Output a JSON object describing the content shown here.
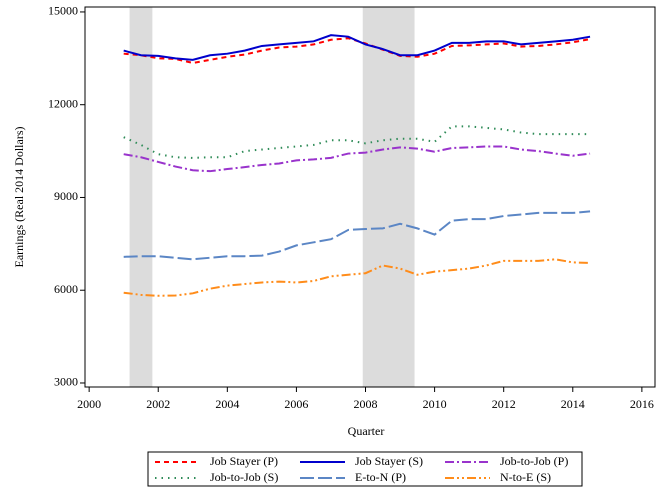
{
  "chart_data": {
    "type": "line",
    "xlabel": "Quarter",
    "ylabel": "Earnings (Real 2014 Dollars)",
    "xlim": [
      1999.88,
      2016.38
    ],
    "ylim": [
      2870,
      15160
    ],
    "xticks": [
      2000,
      2002,
      2004,
      2006,
      2008,
      2010,
      2012,
      2014,
      2016
    ],
    "yticks": [
      3000,
      6000,
      9000,
      12000,
      15000
    ],
    "grid": false,
    "legend": "bottom",
    "shaded_periods": [
      [
        2001.17,
        2001.83
      ],
      [
        2007.92,
        2009.42
      ]
    ],
    "shade_color": "#dcdcdc",
    "x": [
      2001,
      2001.5,
      2002,
      2002.5,
      2003,
      2003.5,
      2004,
      2004.5,
      2005,
      2005.5,
      2006,
      2006.5,
      2007,
      2007.5,
      2008,
      2008.5,
      2009,
      2009.5,
      2010,
      2010.5,
      2011,
      2011.5,
      2012,
      2012.5,
      2013,
      2013.5,
      2014,
      2014.5
    ],
    "series": [
      {
        "name": "Job Stayer (P)",
        "color": "#ff0000",
        "dash": "5,4",
        "values": [
          13650,
          13600,
          13500,
          13480,
          13350,
          13450,
          13550,
          13620,
          13750,
          13850,
          13880,
          13950,
          14100,
          14150,
          13980,
          13780,
          13580,
          13550,
          13650,
          13900,
          13920,
          13950,
          13980,
          13880,
          13900,
          13950,
          14020,
          14120
        ]
      },
      {
        "name": "Job Stayer (S)",
        "color": "#0000cc",
        "dash": "none",
        "values": [
          13750,
          13600,
          13580,
          13500,
          13450,
          13600,
          13650,
          13750,
          13900,
          13950,
          14000,
          14050,
          14250,
          14200,
          13950,
          13800,
          13600,
          13600,
          13750,
          14000,
          14000,
          14050,
          14050,
          13950,
          14000,
          14050,
          14100,
          14200
        ]
      },
      {
        "name": "Job-to-Job (P)",
        "color": "#9933cc",
        "dash": "9,3,2,3",
        "values": [
          10400,
          10300,
          10150,
          10000,
          9880,
          9850,
          9920,
          9980,
          10050,
          10100,
          10200,
          10230,
          10280,
          10420,
          10450,
          10550,
          10620,
          10580,
          10480,
          10600,
          10620,
          10650,
          10650,
          10550,
          10500,
          10420,
          10350,
          10420
        ]
      },
      {
        "name": "Job-to-Job (S)",
        "color": "#2e8b57",
        "dash": "1.5,5",
        "values": [
          10950,
          10700,
          10400,
          10300,
          10280,
          10300,
          10300,
          10500,
          10550,
          10600,
          10650,
          10700,
          10850,
          10850,
          10750,
          10850,
          10900,
          10900,
          10800,
          11300,
          11300,
          11250,
          11200,
          11100,
          11050,
          11050,
          11050,
          11050
        ]
      },
      {
        "name": "E-to-N (P)",
        "color": "#5b86c5",
        "dash": "14,4",
        "values": [
          7080,
          7100,
          7100,
          7050,
          7000,
          7050,
          7100,
          7100,
          7120,
          7250,
          7450,
          7550,
          7650,
          7950,
          7980,
          8000,
          8150,
          8000,
          7800,
          8250,
          8300,
          8300,
          8400,
          8450,
          8500,
          8500,
          8500,
          8550
        ]
      },
      {
        "name": "N-to-E (S)",
        "color": "#ff8c1a",
        "dash": "9,3,2,3,2,3",
        "values": [
          5920,
          5850,
          5820,
          5830,
          5900,
          6050,
          6150,
          6200,
          6250,
          6280,
          6250,
          6300,
          6450,
          6500,
          6550,
          6800,
          6700,
          6500,
          6600,
          6650,
          6700,
          6800,
          6950,
          6950,
          6950,
          7000,
          6900,
          6880
        ]
      }
    ]
  }
}
